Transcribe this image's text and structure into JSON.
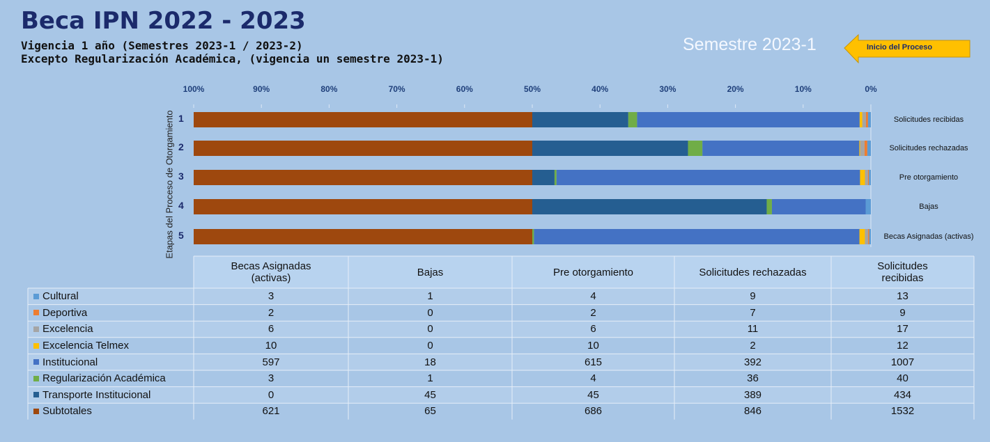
{
  "header": {
    "title": "Beca IPN 2022 - 2023",
    "subtitle_1": "Vigencia 1 año (Semestres 2023-1 / 2023-2)",
    "subtitle_2": "Excepto Regularización Académica, (vigencia un semestre 2023-1)",
    "semester": "Semestre 2023-1",
    "callout": "Inicio del Proceso"
  },
  "chart_data": {
    "type": "bar",
    "orientation": "horizontal",
    "stacked": "percent",
    "ylabel": "Etapas del Proceso de Otorgamiento",
    "row_labels": [
      "1",
      "2",
      "3",
      "4",
      "5"
    ],
    "categories": [
      "Becas Asignadas (activas)",
      "Bajas",
      "Pre otorgamiento",
      "Solicitudes rechazadas",
      "Solicitudes recibidas"
    ],
    "xlim": [
      100,
      0
    ],
    "xticks": [
      {
        "value": 100,
        "label": "100%"
      },
      {
        "value": 90,
        "label": "90%"
      },
      {
        "value": 80,
        "label": "80%"
      },
      {
        "value": 70,
        "label": "70%"
      },
      {
        "value": 60,
        "label": "60%"
      },
      {
        "value": 50,
        "label": "50%"
      },
      {
        "value": 40,
        "label": "40%"
      },
      {
        "value": 30,
        "label": "30%"
      },
      {
        "value": 20,
        "label": "20%"
      },
      {
        "value": 10,
        "label": "10%"
      },
      {
        "value": 0,
        "label": "0%"
      }
    ],
    "series": [
      {
        "name": "Cultural",
        "color": "#5b9bd5",
        "values": [
          3,
          1,
          4,
          9,
          13
        ]
      },
      {
        "name": "Deportiva",
        "color": "#ed7d31",
        "values": [
          2,
          0,
          2,
          7,
          9
        ]
      },
      {
        "name": "Excelencia",
        "color": "#a5a5a5",
        "values": [
          6,
          0,
          6,
          11,
          17
        ]
      },
      {
        "name": "Excelencia Telmex",
        "color": "#ffc000",
        "values": [
          10,
          0,
          10,
          2,
          12
        ]
      },
      {
        "name": "Institucional",
        "color": "#4472c4",
        "values": [
          597,
          18,
          615,
          392,
          1007
        ]
      },
      {
        "name": "Regularización Académica",
        "color": "#70ad47",
        "values": [
          3,
          1,
          4,
          36,
          40
        ]
      },
      {
        "name": "Transporte Institucional",
        "color": "#255e91",
        "values": [
          0,
          45,
          45,
          389,
          434
        ]
      },
      {
        "name": "Subtotales",
        "color": "#9e480e",
        "values": [
          621,
          65,
          686,
          846,
          1532
        ]
      }
    ]
  }
}
